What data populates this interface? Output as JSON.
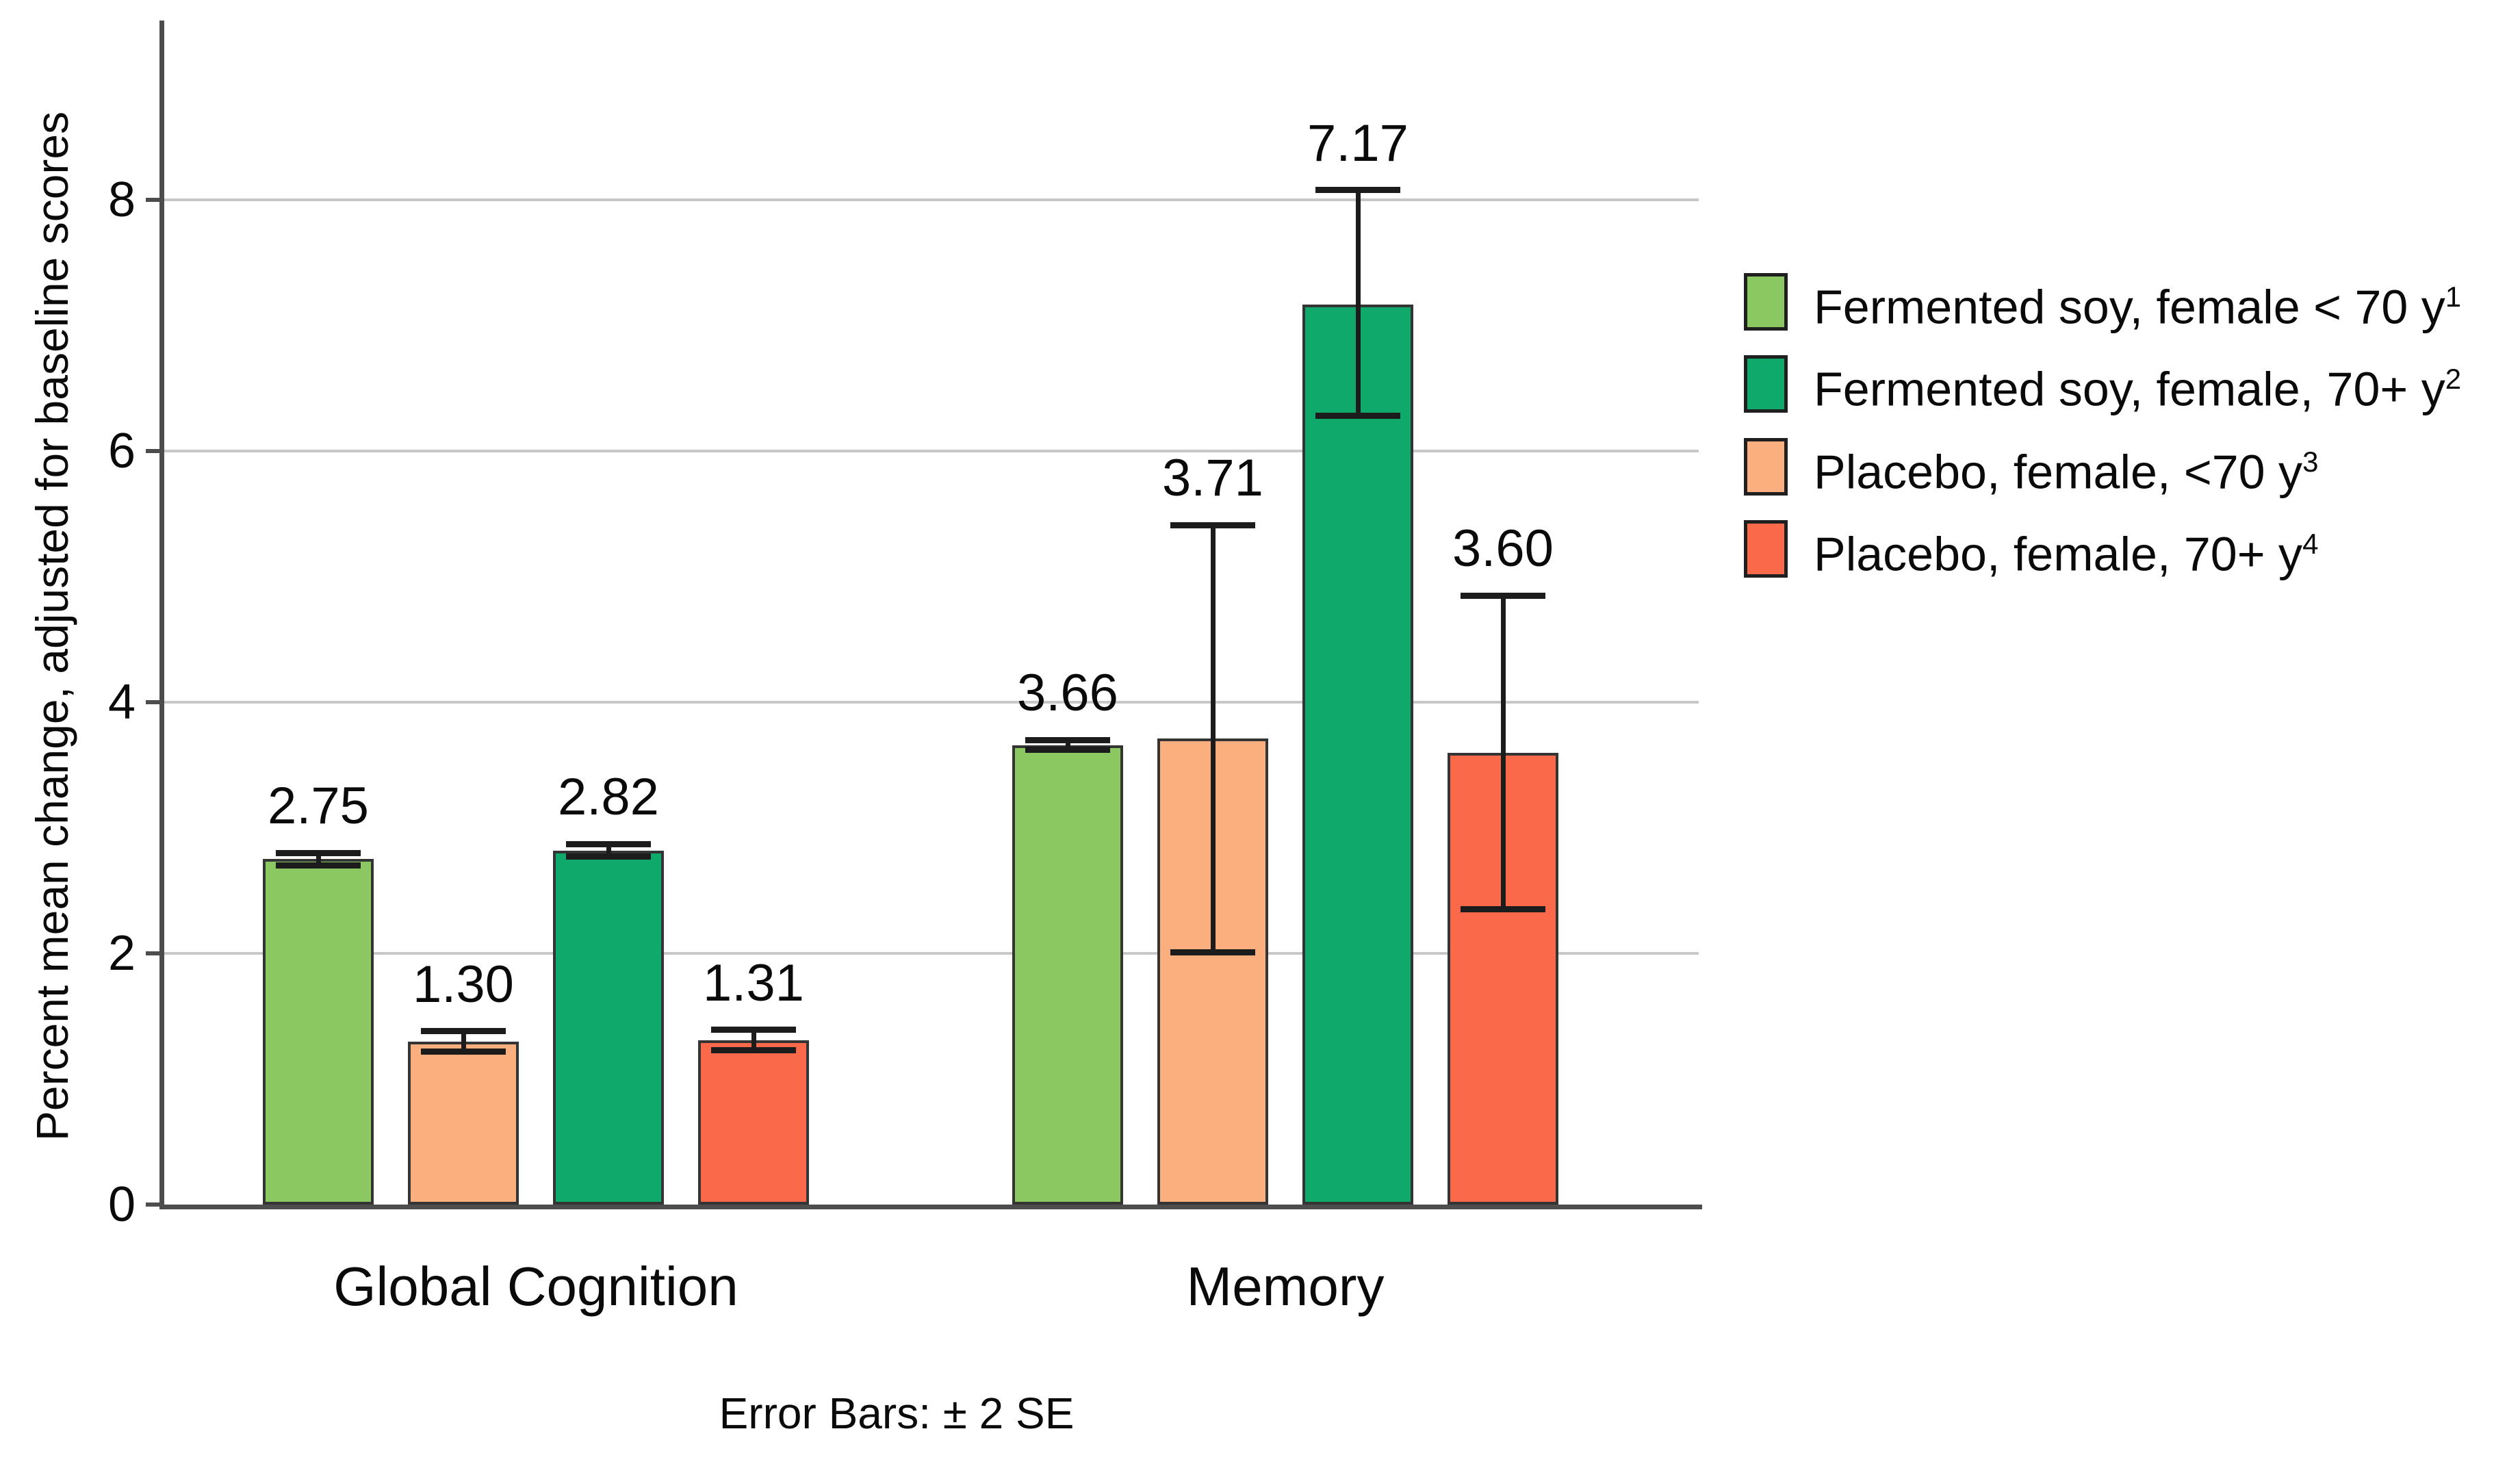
{
  "chart_data": {
    "type": "bar",
    "title": "",
    "ylabel": "Percent mean change, adjusted for baseline scores",
    "xlabel": "",
    "ylim": [
      0,
      9.43
    ],
    "yticks": [
      0,
      2,
      4,
      6,
      8
    ],
    "grid": "horizontal",
    "legend_position": "right",
    "error_bar_note": "± 2 SE",
    "footnote": "Error Bars: ± 2 SE",
    "categories": [
      "Global Cognition",
      "Memory"
    ],
    "series": [
      {
        "name": "Fermented soy, female < 70 y",
        "sup": "1",
        "color": "#8cc862",
        "values": [
          2.75,
          3.66
        ],
        "err_low": [
          2.7,
          3.62
        ],
        "err_high": [
          2.8,
          3.7
        ]
      },
      {
        "name": "Fermented soy, female, 70+ y",
        "sup": "2",
        "color": "#0fa96b",
        "values": [
          2.82,
          7.17
        ],
        "err_low": [
          2.77,
          6.28
        ],
        "err_high": [
          2.87,
          8.08
        ]
      },
      {
        "name": "Placebo, female, <70 y",
        "sup": "3",
        "color": "#fbae7e",
        "values": [
          1.3,
          3.71
        ],
        "err_low": [
          1.22,
          2.01
        ],
        "err_high": [
          1.38,
          5.41
        ]
      },
      {
        "name": "Placebo, female, 70+ y",
        "sup": "4",
        "color": "#f9694a",
        "values": [
          1.31,
          3.6
        ],
        "err_low": [
          1.23,
          2.35
        ],
        "err_high": [
          1.39,
          4.85
        ]
      }
    ],
    "bar_draw_order": [
      0,
      2,
      1,
      3
    ],
    "value_labels": [
      [
        "2.75",
        "1.30",
        "2.82",
        "1.31"
      ],
      [
        "3.66",
        "3.71",
        "7.17",
        "3.60"
      ]
    ]
  }
}
